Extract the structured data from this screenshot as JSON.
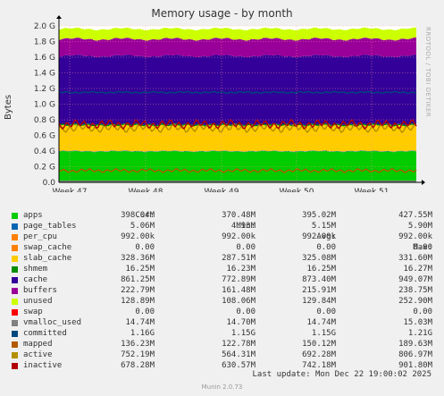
{
  "chart_data": {
    "type": "area",
    "title": "Memory usage - by month",
    "ylabel": "Bytes",
    "ylim": [
      0,
      2000000000
    ],
    "yticks": [
      "0.0",
      "0.2 G",
      "0.4 G",
      "0.6 G",
      "0.8 G",
      "1.0 G",
      "1.2 G",
      "1.4 G",
      "1.6 G",
      "1.8 G",
      "2.0 G"
    ],
    "xticks": [
      "Week 47",
      "Week 48",
      "Week 49",
      "Week 50",
      "Week 51"
    ],
    "grid": true,
    "stacked_series": [
      {
        "name": "apps",
        "color": "#00cc00",
        "avg": 395020000
      },
      {
        "name": "page_tables",
        "color": "#0066b3",
        "avg": 5150000
      },
      {
        "name": "per_cpu",
        "color": "#ff8000",
        "avg": 992000
      },
      {
        "name": "swap_cache",
        "color": "#ffcc00",
        "avg": 0
      },
      {
        "name": "slab_cache",
        "color": "#ffcc00",
        "avg": 325080000
      },
      {
        "name": "shmem",
        "color": "#008f00",
        "avg": 16250000
      },
      {
        "name": "cache",
        "color": "#330099",
        "avg": 873400000
      },
      {
        "name": "buffers",
        "color": "#990099",
        "avg": 215910000
      },
      {
        "name": "unused",
        "color": "#ccff00",
        "avg": 129840000
      },
      {
        "name": "swap",
        "color": "#ff0000",
        "avg": 0
      }
    ],
    "line_series": [
      {
        "name": "vmalloc_used",
        "color": "#808080",
        "avg": 14740000
      },
      {
        "name": "committed",
        "color": "#00487d",
        "avg": 1150000000
      },
      {
        "name": "mapped",
        "color": "#b35a00",
        "avg": 150120000
      },
      {
        "name": "active",
        "color": "#b38f00",
        "avg": 692280000
      },
      {
        "name": "inactive",
        "color": "#b30000",
        "avg": 742180000
      }
    ]
  },
  "side_label": "RRDTOOL / TOBI OETIKER",
  "legend": {
    "headers": [
      "Cur:",
      "Min:",
      "Avg:",
      "Max:"
    ],
    "rows": [
      {
        "name": "apps",
        "color": "#00cc00",
        "cur": "398.04M",
        "min": "370.48M",
        "avg": "395.02M",
        "max": "427.55M"
      },
      {
        "name": "page_tables",
        "color": "#0066b3",
        "cur": "5.06M",
        "min": "4.93M",
        "avg": "5.15M",
        "max": "5.90M"
      },
      {
        "name": "per_cpu",
        "color": "#ff8000",
        "cur": "992.00k",
        "min": "992.00k",
        "avg": "992.00k",
        "max": "992.00k"
      },
      {
        "name": "swap_cache",
        "color": "#ff8000",
        "cur": "0.00",
        "min": "0.00",
        "avg": "0.00",
        "max": "0.00"
      },
      {
        "name": "slab_cache",
        "color": "#ffcc00",
        "cur": "328.36M",
        "min": "287.51M",
        "avg": "325.08M",
        "max": "331.60M"
      },
      {
        "name": "shmem",
        "color": "#008f00",
        "cur": "16.25M",
        "min": "16.23M",
        "avg": "16.25M",
        "max": "16.27M"
      },
      {
        "name": "cache",
        "color": "#330099",
        "cur": "861.25M",
        "min": "772.89M",
        "avg": "873.40M",
        "max": "949.07M"
      },
      {
        "name": "buffers",
        "color": "#990099",
        "cur": "222.79M",
        "min": "161.48M",
        "avg": "215.91M",
        "max": "238.75M"
      },
      {
        "name": "unused",
        "color": "#ccff00",
        "cur": "128.89M",
        "min": "108.06M",
        "avg": "129.84M",
        "max": "252.90M"
      },
      {
        "name": "swap",
        "color": "#ff0000",
        "cur": "0.00",
        "min": "0.00",
        "avg": "0.00",
        "max": "0.00"
      },
      {
        "name": "vmalloc_used",
        "color": "#808080",
        "cur": "14.74M",
        "min": "14.70M",
        "avg": "14.74M",
        "max": "15.03M"
      },
      {
        "name": "committed",
        "color": "#00487d",
        "cur": "1.16G",
        "min": "1.15G",
        "avg": "1.15G",
        "max": "1.21G"
      },
      {
        "name": "mapped",
        "color": "#b35a00",
        "cur": "136.23M",
        "min": "122.78M",
        "avg": "150.12M",
        "max": "189.63M"
      },
      {
        "name": "active",
        "color": "#b38f00",
        "cur": "752.19M",
        "min": "564.31M",
        "avg": "692.28M",
        "max": "806.97M"
      },
      {
        "name": "inactive",
        "color": "#b30000",
        "cur": "678.28M",
        "min": "630.57M",
        "avg": "742.18M",
        "max": "901.80M"
      }
    ]
  },
  "last_update": "Last update: Mon Dec 22 19:00:02 2025",
  "footer_brand": "Munin 2.0.73"
}
